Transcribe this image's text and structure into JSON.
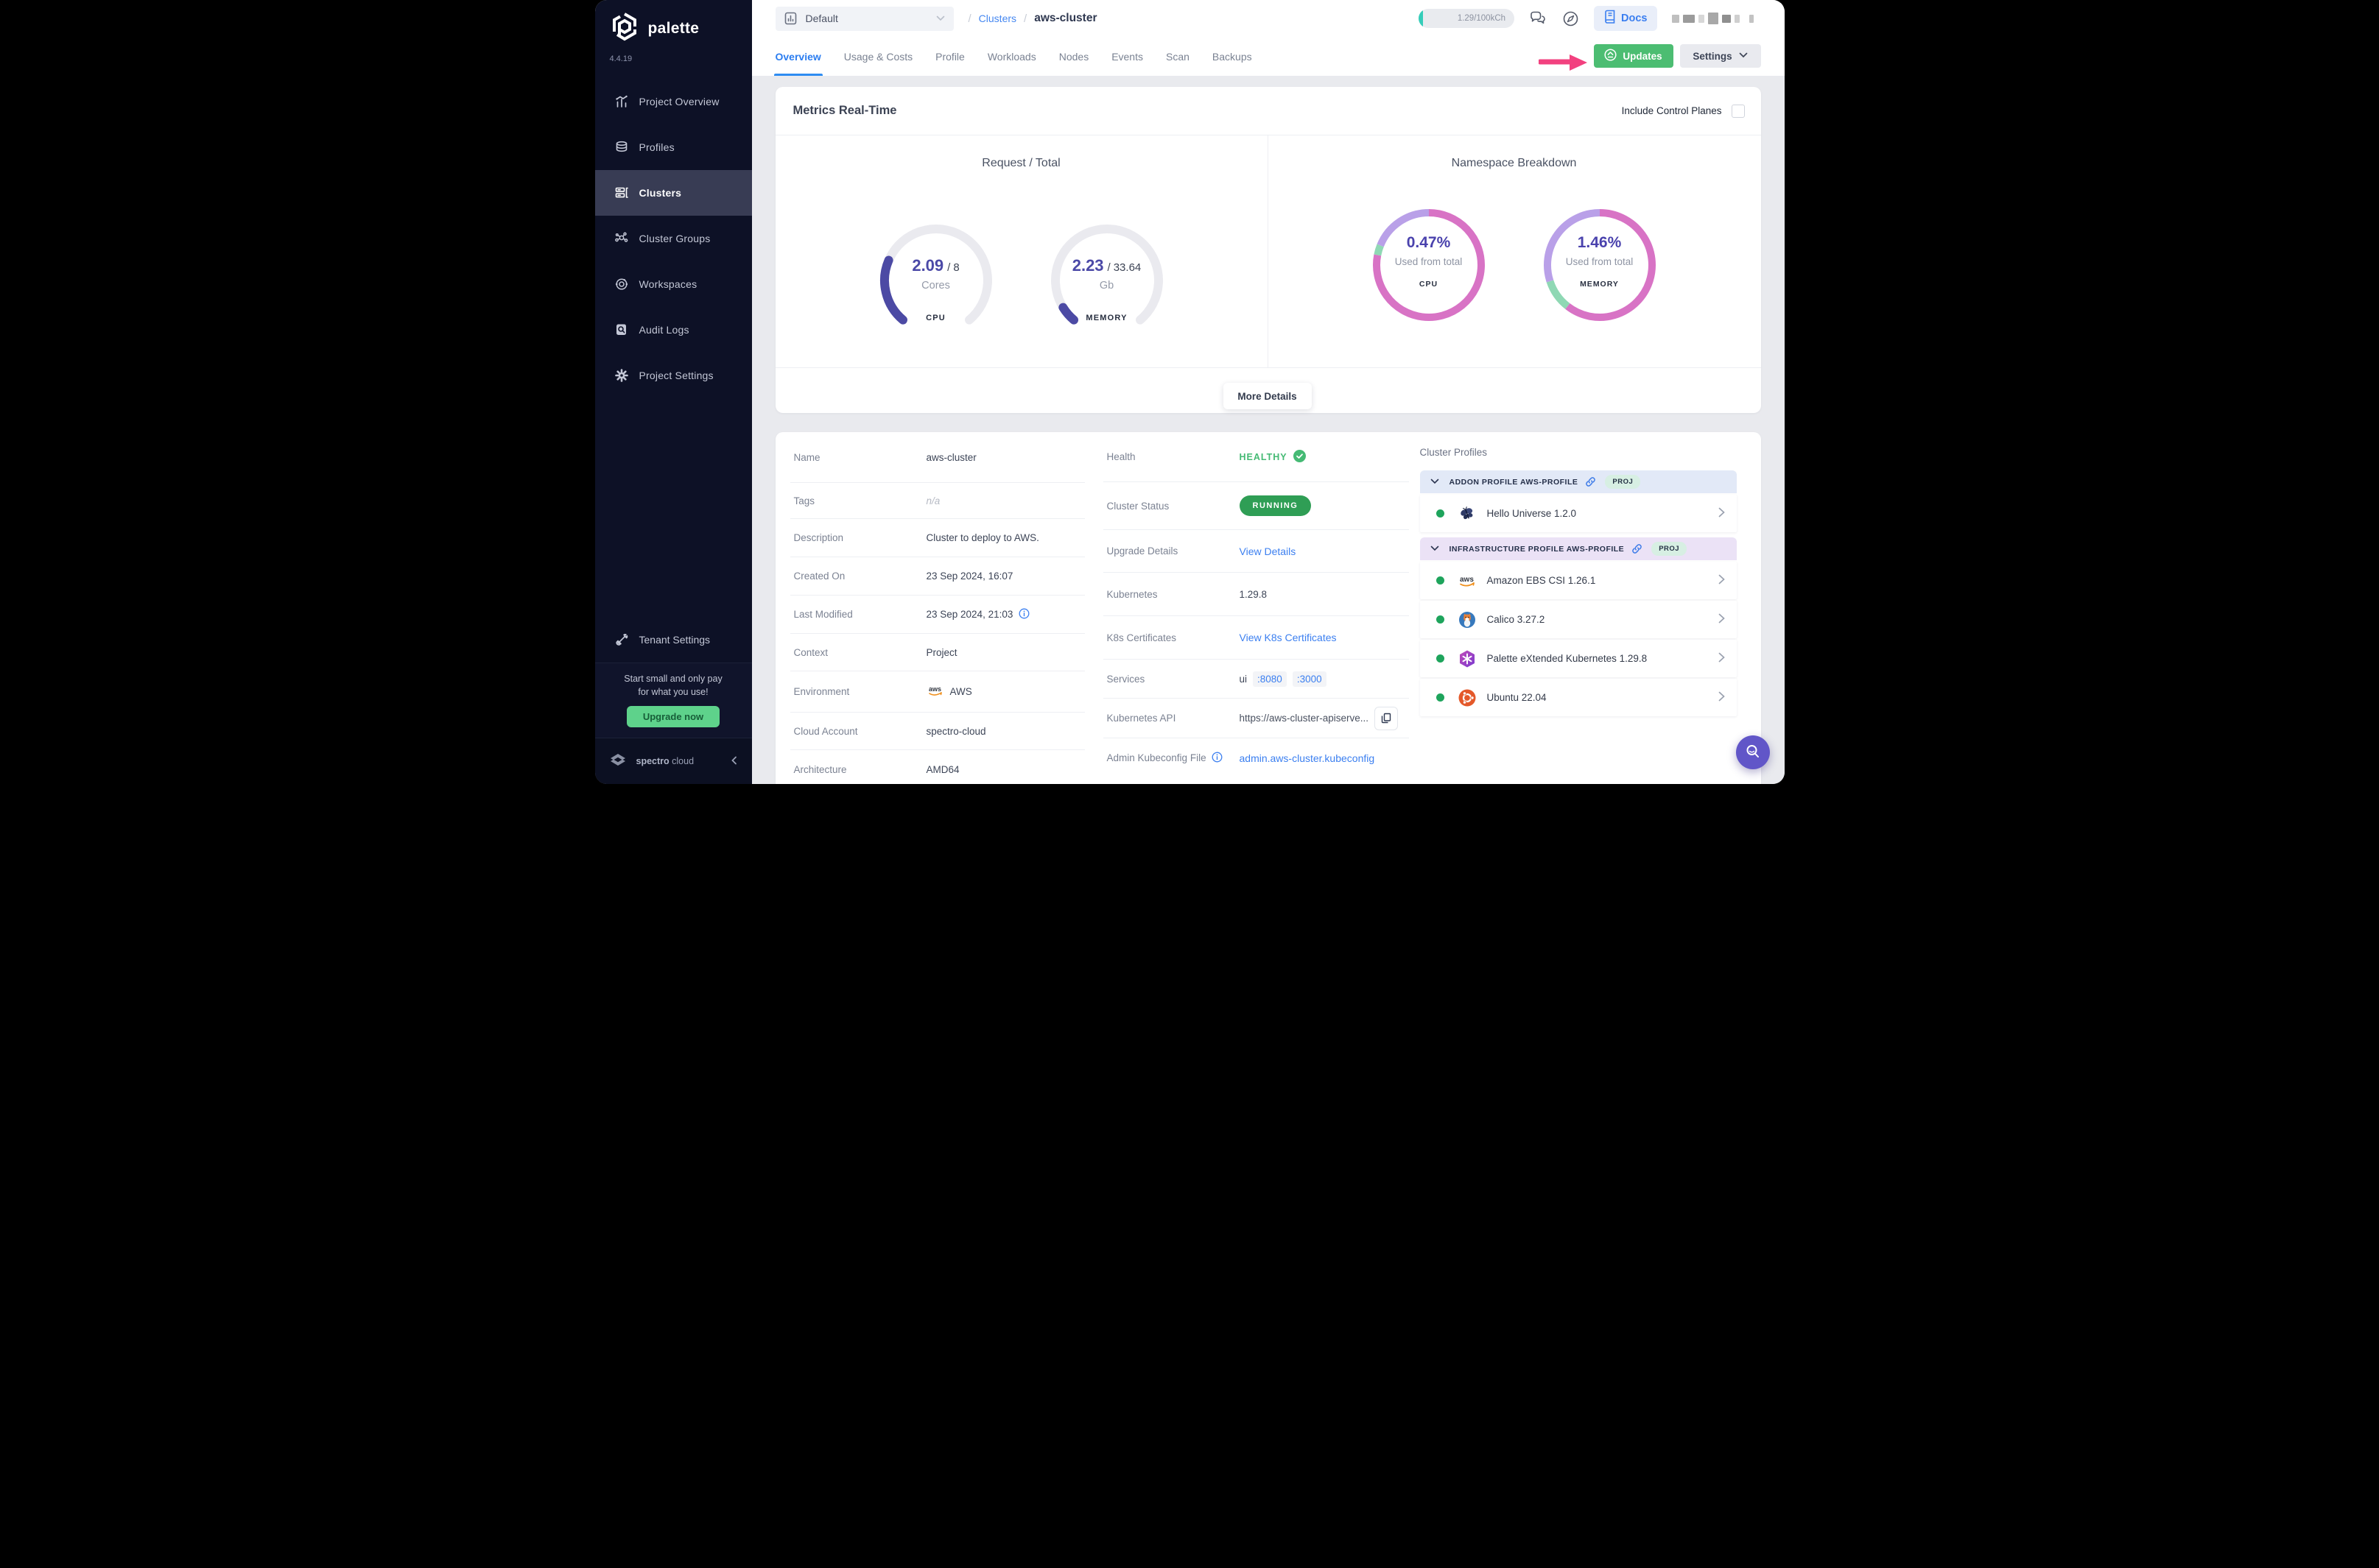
{
  "colors": {
    "accent_blue": "#3b7ff0",
    "green_button": "#4cbd72",
    "status_green": "#2f9e55",
    "healthy_green": "#45ba74",
    "indigo": "#4b49a7",
    "gauge_fill": "#4c4aa4",
    "gauge_track": "#eaeaef",
    "ring_pink": "#d873c5",
    "ring_purple": "#b9a0e8",
    "ring_green": "#8fd8b4",
    "annotation_pink": "#f2417f",
    "sidebar_bg": "#0d1126"
  },
  "sidebar": {
    "brand": "palette",
    "version": "4.4.19",
    "items": [
      {
        "label": "Project Overview",
        "icon": "chart-icon"
      },
      {
        "label": "Profiles",
        "icon": "layers-icon"
      },
      {
        "label": "Clusters",
        "icon": "server-icon",
        "active": true
      },
      {
        "label": "Cluster Groups",
        "icon": "network-icon"
      },
      {
        "label": "Workspaces",
        "icon": "orbit-icon"
      },
      {
        "label": "Audit Logs",
        "icon": "audit-icon"
      },
      {
        "label": "Project Settings",
        "icon": "gear-icon"
      }
    ],
    "tenant_settings": "Tenant Settings",
    "promo_line1": "Start small and only pay",
    "promo_line2": "for what you use!",
    "upgrade_label": "Upgrade now",
    "footer_brand_bold": "spectro",
    "footer_brand_light": "cloud"
  },
  "topbar": {
    "project_selector": "Default",
    "breadcrumb_sep": "/",
    "breadcrumb_parent": "Clusters",
    "breadcrumb_current": "aws-cluster",
    "usage_badge": "1.29/100kCh",
    "docs_label": "Docs"
  },
  "tabs": [
    {
      "label": "Overview",
      "active": true
    },
    {
      "label": "Usage & Costs"
    },
    {
      "label": "Profile"
    },
    {
      "label": "Workloads"
    },
    {
      "label": "Nodes"
    },
    {
      "label": "Events"
    },
    {
      "label": "Scan"
    },
    {
      "label": "Backups"
    }
  ],
  "actions": {
    "updates_label": "Updates",
    "settings_label": "Settings"
  },
  "metrics": {
    "title": "Metrics Real-Time",
    "include_toggle_label": "Include Control Planes",
    "left_title": "Request / Total",
    "right_title": "Namespace Breakdown",
    "gauges": [
      {
        "value": "2.09",
        "separator": "/",
        "total": "8",
        "unit": "Cores",
        "caption": "CPU",
        "fraction": 0.261
      },
      {
        "value": "2.23",
        "separator": "/",
        "total": "33.64",
        "unit": "Gb",
        "caption": "MEMORY",
        "fraction": 0.066
      }
    ],
    "rings": [
      {
        "percent": "0.47%",
        "subtitle": "Used from total",
        "caption": "CPU",
        "segments": [
          [
            0,
            281,
            "pink"
          ],
          [
            281,
            292,
            "green"
          ],
          [
            292,
            360,
            "purple"
          ]
        ]
      },
      {
        "percent": "1.46%",
        "subtitle": "Used from total",
        "caption": "MEMORY",
        "segments": [
          [
            0,
            218,
            "pink"
          ],
          [
            218,
            252,
            "green"
          ],
          [
            252,
            360,
            "purple"
          ]
        ]
      }
    ],
    "more_details_label": "More Details"
  },
  "details": {
    "left_rows": [
      {
        "label": "Name",
        "value": "aws-cluster"
      },
      {
        "label": "Tags",
        "value": "n/a"
      },
      {
        "label": "Description",
        "value": "Cluster to deploy to AWS."
      },
      {
        "label": "Created On",
        "value": "23 Sep 2024, 16:07"
      },
      {
        "label": "Last Modified",
        "value": "23 Sep 2024, 21:03"
      },
      {
        "label": "Context",
        "value": "Project"
      },
      {
        "label": "Environment",
        "value": "AWS"
      },
      {
        "label": "Cloud Account",
        "value": "spectro-cloud"
      },
      {
        "label": "Architecture",
        "value": "AMD64"
      }
    ],
    "middle": {
      "health_label": "Health",
      "health_value": "HEALTHY",
      "status_label": "Cluster Status",
      "status_value": "RUNNING",
      "upgrade_label": "Upgrade Details",
      "upgrade_value": "View Details",
      "kubernetes_label": "Kubernetes",
      "kubernetes_value": "1.29.8",
      "certs_label": "K8s Certificates",
      "certs_value": "View K8s Certificates",
      "services_label": "Services",
      "services_name": "ui",
      "services_port1": ":8080",
      "services_port2": ":3000",
      "api_label": "Kubernetes API",
      "api_value": "https://aws-cluster-apiserve...",
      "kubeconfig_label": "Admin Kubeconfig File",
      "kubeconfig_value": "admin.aws-cluster.kubeconfig"
    }
  },
  "profiles": {
    "title": "Cluster Profiles",
    "sections": [
      {
        "header": "ADDON PROFILE AWS-PROFILE",
        "badge": "PROJ",
        "items": [
          {
            "name": "Hello Universe 1.2.0",
            "icon": "butterfly-icon"
          }
        ]
      },
      {
        "header": "INFRASTRUCTURE PROFILE AWS-PROFILE",
        "badge": "PROJ",
        "items": [
          {
            "name": "Amazon EBS CSI 1.26.1",
            "icon": "aws-icon"
          },
          {
            "name": "Calico 3.27.2",
            "icon": "calico-icon"
          },
          {
            "name": "Palette eXtended Kubernetes 1.29.8",
            "icon": "kubernetes-icon"
          },
          {
            "name": "Ubuntu 22.04",
            "icon": "ubuntu-icon"
          }
        ]
      }
    ]
  }
}
